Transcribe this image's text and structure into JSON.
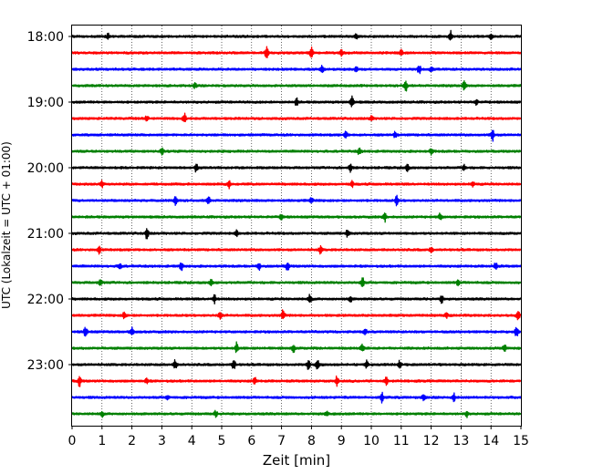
{
  "chart_data": {
    "type": "line",
    "subtype": "helicorder",
    "xlabel": "Zeit  [min]",
    "ylabel": "UTC (Lokalzeit = UTC + 01:00)",
    "xlim": [
      0,
      15
    ],
    "x_ticks": [
      0,
      1,
      2,
      3,
      4,
      5,
      6,
      7,
      8,
      9,
      10,
      11,
      12,
      13,
      14,
      15
    ],
    "x_tick_labels": [
      "0",
      "1",
      "2",
      "3",
      "4",
      "5",
      "6",
      "7",
      "8",
      "9",
      "10",
      "11",
      "12",
      "13",
      "14",
      "15"
    ],
    "y_tick_labels": [
      "18:00",
      "19:00",
      "20:00",
      "21:00",
      "22:00",
      "23:00"
    ],
    "traces_per_hour": 4,
    "trace_minutes": 15,
    "grid": "vertical dotted lines at every minute",
    "trace_colors": [
      "#000000",
      "#ff0000",
      "#0000ff",
      "#008000"
    ],
    "traces": [
      {
        "start": "18:00",
        "color": "#000000",
        "events": [
          {
            "t": 12.65,
            "a": 6
          },
          {
            "t": 14.0,
            "a": 4
          },
          {
            "t": 1.2,
            "a": 3
          },
          {
            "t": 9.5,
            "a": 3
          }
        ]
      },
      {
        "start": "18:15",
        "color": "#ff0000",
        "events": [
          {
            "t": 6.5,
            "a": 7
          },
          {
            "t": 8.0,
            "a": 6
          },
          {
            "t": 9.0,
            "a": 3
          },
          {
            "t": 11.0,
            "a": 3
          }
        ]
      },
      {
        "start": "18:30",
        "color": "#0000ff",
        "events": [
          {
            "t": 8.35,
            "a": 6
          },
          {
            "t": 11.6,
            "a": 5
          },
          {
            "t": 9.5,
            "a": 3
          },
          {
            "t": 12.0,
            "a": 3
          }
        ]
      },
      {
        "start": "18:45",
        "color": "#008000",
        "events": [
          {
            "t": 11.15,
            "a": 7
          },
          {
            "t": 13.1,
            "a": 5
          },
          {
            "t": 4.1,
            "a": 3
          }
        ]
      },
      {
        "start": "19:00",
        "color": "#000000",
        "events": [
          {
            "t": 9.35,
            "a": 7
          },
          {
            "t": 7.5,
            "a": 4
          },
          {
            "t": 13.5,
            "a": 3
          }
        ]
      },
      {
        "start": "19:15",
        "color": "#ff0000",
        "events": [
          {
            "t": 3.75,
            "a": 6
          },
          {
            "t": 2.5,
            "a": 3
          },
          {
            "t": 10.0,
            "a": 3
          }
        ]
      },
      {
        "start": "19:30",
        "color": "#0000ff",
        "events": [
          {
            "t": 14.05,
            "a": 7
          },
          {
            "t": 9.15,
            "a": 4
          },
          {
            "t": 10.8,
            "a": 3
          }
        ]
      },
      {
        "start": "19:45",
        "color": "#008000",
        "events": [
          {
            "t": 3.0,
            "a": 4
          },
          {
            "t": 9.6,
            "a": 4
          },
          {
            "t": 12.0,
            "a": 3
          }
        ]
      },
      {
        "start": "20:00",
        "color": "#000000",
        "events": [
          {
            "t": 4.15,
            "a": 5
          },
          {
            "t": 9.3,
            "a": 5
          },
          {
            "t": 11.2,
            "a": 4
          },
          {
            "t": 13.1,
            "a": 3
          }
        ]
      },
      {
        "start": "20:15",
        "color": "#ff0000",
        "events": [
          {
            "t": 1.0,
            "a": 4
          },
          {
            "t": 5.25,
            "a": 4
          },
          {
            "t": 9.35,
            "a": 3
          },
          {
            "t": 13.4,
            "a": 3
          }
        ]
      },
      {
        "start": "20:30",
        "color": "#0000ff",
        "events": [
          {
            "t": 3.45,
            "a": 5
          },
          {
            "t": 4.55,
            "a": 5
          },
          {
            "t": 10.85,
            "a": 5
          },
          {
            "t": 8.0,
            "a": 3
          }
        ]
      },
      {
        "start": "20:45",
        "color": "#008000",
        "events": [
          {
            "t": 10.45,
            "a": 5
          },
          {
            "t": 12.3,
            "a": 4
          },
          {
            "t": 7.0,
            "a": 3
          }
        ]
      },
      {
        "start": "21:00",
        "color": "#000000",
        "events": [
          {
            "t": 2.5,
            "a": 7
          },
          {
            "t": 9.2,
            "a": 4
          },
          {
            "t": 5.5,
            "a": 3
          }
        ]
      },
      {
        "start": "21:15",
        "color": "#ff0000",
        "events": [
          {
            "t": 0.9,
            "a": 4
          },
          {
            "t": 8.3,
            "a": 4
          },
          {
            "t": 12.0,
            "a": 3
          }
        ]
      },
      {
        "start": "21:30",
        "color": "#0000ff",
        "events": [
          {
            "t": 1.6,
            "a": 4
          },
          {
            "t": 3.65,
            "a": 5
          },
          {
            "t": 6.25,
            "a": 4
          },
          {
            "t": 7.2,
            "a": 5
          },
          {
            "t": 14.15,
            "a": 4
          }
        ]
      },
      {
        "start": "21:45",
        "color": "#008000",
        "events": [
          {
            "t": 0.95,
            "a": 4
          },
          {
            "t": 4.65,
            "a": 4
          },
          {
            "t": 9.7,
            "a": 6
          },
          {
            "t": 12.9,
            "a": 3
          }
        ]
      },
      {
        "start": "22:00",
        "color": "#000000",
        "events": [
          {
            "t": 4.75,
            "a": 5
          },
          {
            "t": 7.95,
            "a": 5
          },
          {
            "t": 12.35,
            "a": 4
          },
          {
            "t": 9.3,
            "a": 3
          }
        ]
      },
      {
        "start": "22:15",
        "color": "#ff0000",
        "events": [
          {
            "t": 1.75,
            "a": 4
          },
          {
            "t": 4.95,
            "a": 5
          },
          {
            "t": 7.05,
            "a": 6
          },
          {
            "t": 14.9,
            "a": 5
          },
          {
            "t": 12.5,
            "a": 3
          }
        ]
      },
      {
        "start": "22:30",
        "color": "#0000ff",
        "events": [
          {
            "t": 0.45,
            "a": 6
          },
          {
            "t": 2.0,
            "a": 5
          },
          {
            "t": 9.8,
            "a": 3
          },
          {
            "t": 14.85,
            "a": 6
          }
        ]
      },
      {
        "start": "22:45",
        "color": "#008000",
        "events": [
          {
            "t": 5.5,
            "a": 6
          },
          {
            "t": 7.4,
            "a": 4
          },
          {
            "t": 9.7,
            "a": 4
          },
          {
            "t": 14.45,
            "a": 5
          }
        ]
      },
      {
        "start": "23:00",
        "color": "#000000",
        "events": [
          {
            "t": 3.45,
            "a": 5
          },
          {
            "t": 5.4,
            "a": 6
          },
          {
            "t": 7.9,
            "a": 6
          },
          {
            "t": 8.2,
            "a": 6
          },
          {
            "t": 9.85,
            "a": 4
          },
          {
            "t": 10.95,
            "a": 4
          }
        ]
      },
      {
        "start": "23:15",
        "color": "#ff0000",
        "events": [
          {
            "t": 0.25,
            "a": 6
          },
          {
            "t": 2.5,
            "a": 3
          },
          {
            "t": 6.1,
            "a": 4
          },
          {
            "t": 8.85,
            "a": 5
          },
          {
            "t": 10.5,
            "a": 4
          }
        ]
      },
      {
        "start": "23:30",
        "color": "#0000ff",
        "events": [
          {
            "t": 3.2,
            "a": 3
          },
          {
            "t": 10.35,
            "a": 5
          },
          {
            "t": 11.75,
            "a": 4
          },
          {
            "t": 12.75,
            "a": 5
          }
        ]
      },
      {
        "start": "23:45",
        "color": "#008000",
        "events": [
          {
            "t": 1.0,
            "a": 3
          },
          {
            "t": 4.8,
            "a": 3
          },
          {
            "t": 8.5,
            "a": 3
          },
          {
            "t": 13.2,
            "a": 3
          }
        ]
      }
    ]
  }
}
